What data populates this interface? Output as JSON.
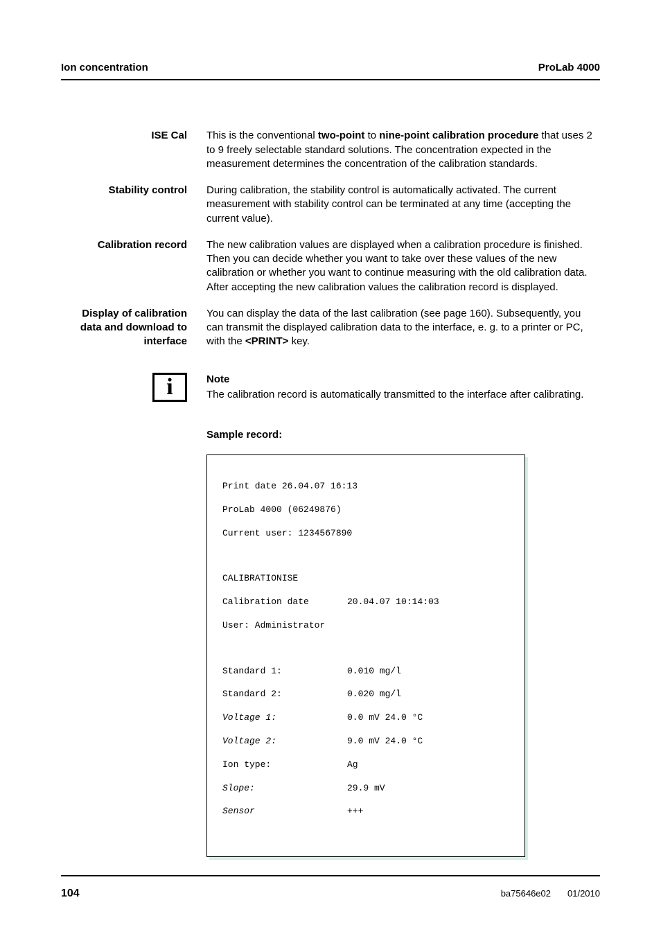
{
  "header": {
    "left": "Ion concentration",
    "right": "ProLab 4000"
  },
  "sections": {
    "ise_cal": {
      "label": "ISE Cal",
      "body_pre": "This is the conventional ",
      "body_b1": "two-point",
      "body_mid1": " to ",
      "body_b2": "nine-point calibration procedure",
      "body_post": " that uses 2 to 9 freely selectable standard solutions. The concentration expected in the measurement determines the concentration of the calibration standards."
    },
    "stability": {
      "label": "Stability control",
      "body": "During calibration, the stability control is automatically activated. The current measurement with stability control can be terminated at any time (accepting the current value)."
    },
    "cal_record": {
      "label": "Calibration record",
      "body": "The new calibration values are displayed when a calibration procedure is finished. Then you can decide whether you want to take over these values of the new calibration or whether you want to continue measuring with the old calibration data. After accepting the new calibration values the calibration record is displayed."
    },
    "display": {
      "label": "Display of calibration data and download to interface",
      "body_pre": "You can display the data of the last calibration (see page 160). Subsequently, you can transmit the displayed calibration data to the interface, e. g. to a printer or PC, with the ",
      "body_b": "<PRINT>",
      "body_post": " key."
    }
  },
  "note": {
    "title": "Note",
    "body": "The calibration record is automatically transmitted to the interface after calibrating.",
    "icon_glyph": "i"
  },
  "sample_label": "Sample record:",
  "record": {
    "l1": "Print date 26.04.07 16:13",
    "l2": "ProLab 4000 (06249876)",
    "l3": "Current user: 1234567890",
    "l4": "CALIBRATIONISE",
    "l5k": "Calibration date",
    "l5v": "20.04.07 10:14:03",
    "l6": "User: Administrator",
    "r1k": "Standard 1:",
    "r1v": "0.010 mg/l",
    "r2k": "Standard 2:",
    "r2v": "0.020 mg/l",
    "r3k": "Voltage 1:",
    "r3v": "0.0 mV 24.0 °C",
    "r4k": "Voltage 2:",
    "r4v": "9.0 mV 24.0 °C",
    "r5k": "Ion type:",
    "r5v": "Ag",
    "r6k": "Slope:",
    "r6v": "29.9 mV",
    "r7k": "Sensor",
    "r7v": "+++"
  },
  "footer": {
    "page": "104",
    "doc_code": "ba75646e02",
    "doc_date": "01/2010"
  }
}
